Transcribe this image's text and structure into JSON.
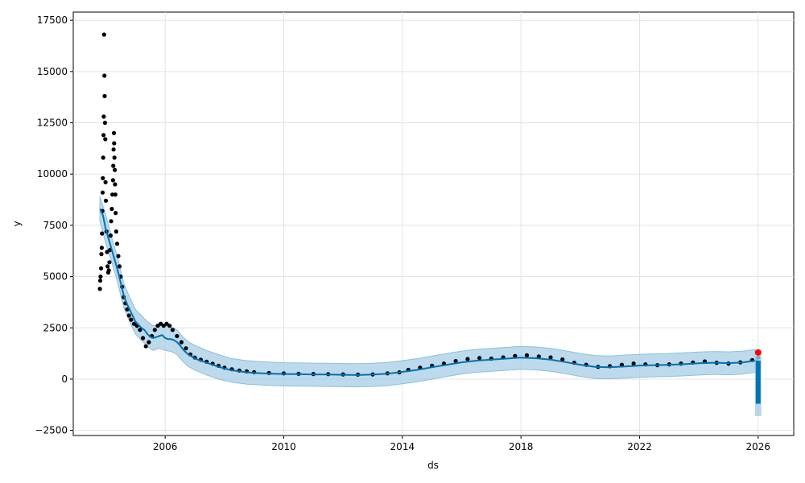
{
  "chart_data": {
    "type": "line",
    "title": "",
    "xlabel": "ds",
    "ylabel": "y",
    "xlim": [
      2002.9,
      2027.2
    ],
    "ylim": [
      -2750,
      17900
    ],
    "xticks": [
      2006,
      2010,
      2014,
      2018,
      2022,
      2026
    ],
    "xtick_labels": [
      "2006",
      "2010",
      "2014",
      "2018",
      "2022",
      "2026"
    ],
    "yticks": [
      -2500,
      0,
      2500,
      5000,
      7500,
      10000,
      12500,
      15000,
      17500
    ],
    "ytick_labels": [
      "−2500",
      "0",
      "2500",
      "5000",
      "7500",
      "10000",
      "12500",
      "15000",
      "17500"
    ],
    "grid": true,
    "colors": {
      "observed": "#000000",
      "forecast": "#0072b2",
      "interval": "#a6cde6",
      "highlight": "#ff0000"
    },
    "observed_points": [
      [
        2003.8,
        4400
      ],
      [
        2003.81,
        4800
      ],
      [
        2003.82,
        5000
      ],
      [
        2003.84,
        5400
      ],
      [
        2003.85,
        6100
      ],
      [
        2003.86,
        6400
      ],
      [
        2003.87,
        7100
      ],
      [
        2003.88,
        8200
      ],
      [
        2003.89,
        9100
      ],
      [
        2003.9,
        9800
      ],
      [
        2003.91,
        10800
      ],
      [
        2003.92,
        11900
      ],
      [
        2003.93,
        12800
      ],
      [
        2003.94,
        16800
      ],
      [
        2003.95,
        14800
      ],
      [
        2003.96,
        13800
      ],
      [
        2003.97,
        12500
      ],
      [
        2003.98,
        11700
      ],
      [
        2003.99,
        9600
      ],
      [
        2004.0,
        8700
      ],
      [
        2004.02,
        7200
      ],
      [
        2004.04,
        6200
      ],
      [
        2004.06,
        5500
      ],
      [
        2004.08,
        5200
      ],
      [
        2004.1,
        5300
      ],
      [
        2004.12,
        5700
      ],
      [
        2004.14,
        6300
      ],
      [
        2004.16,
        7000
      ],
      [
        2004.18,
        7700
      ],
      [
        2004.2,
        8300
      ],
      [
        2004.22,
        9000
      ],
      [
        2004.24,
        9700
      ],
      [
        2004.25,
        10400
      ],
      [
        2004.26,
        11200
      ],
      [
        2004.27,
        12000
      ],
      [
        2004.28,
        11500
      ],
      [
        2004.29,
        10800
      ],
      [
        2004.3,
        10200
      ],
      [
        2004.31,
        9500
      ],
      [
        2004.32,
        9000
      ],
      [
        2004.33,
        8100
      ],
      [
        2004.35,
        7200
      ],
      [
        2004.38,
        6600
      ],
      [
        2004.42,
        6000
      ],
      [
        2004.46,
        5500
      ],
      [
        2004.5,
        5000
      ],
      [
        2004.55,
        4500
      ],
      [
        2004.6,
        4000
      ],
      [
        2004.66,
        3700
      ],
      [
        2004.72,
        3400
      ],
      [
        2004.78,
        3100
      ],
      [
        2004.85,
        2900
      ],
      [
        2004.95,
        2700
      ],
      [
        2005.05,
        2600
      ],
      [
        2005.15,
        2400
      ],
      [
        2005.25,
        2000
      ],
      [
        2005.35,
        1600
      ],
      [
        2005.45,
        1800
      ],
      [
        2005.55,
        2100
      ],
      [
        2005.65,
        2400
      ],
      [
        2005.75,
        2600
      ],
      [
        2005.85,
        2700
      ],
      [
        2005.95,
        2600
      ],
      [
        2006.05,
        2700
      ],
      [
        2006.15,
        2600
      ],
      [
        2006.25,
        2400
      ],
      [
        2006.4,
        2100
      ],
      [
        2006.55,
        1800
      ],
      [
        2006.7,
        1500
      ],
      [
        2006.85,
        1200
      ],
      [
        2007.0,
        1050
      ],
      [
        2007.2,
        950
      ],
      [
        2007.4,
        850
      ],
      [
        2007.6,
        750
      ],
      [
        2007.8,
        650
      ],
      [
        2008.0,
        560
      ],
      [
        2008.25,
        480
      ],
      [
        2008.5,
        420
      ],
      [
        2008.75,
        380
      ],
      [
        2009.0,
        340
      ],
      [
        2009.5,
        300
      ],
      [
        2010.0,
        280
      ],
      [
        2010.5,
        260
      ],
      [
        2011.0,
        250
      ],
      [
        2011.5,
        240
      ],
      [
        2012.0,
        230
      ],
      [
        2012.5,
        220
      ],
      [
        2013.0,
        230
      ],
      [
        2013.5,
        280
      ],
      [
        2013.9,
        330
      ],
      [
        2014.2,
        450
      ],
      [
        2014.6,
        560
      ],
      [
        2015.0,
        650
      ],
      [
        2015.4,
        760
      ],
      [
        2015.8,
        880
      ],
      [
        2016.2,
        980
      ],
      [
        2016.6,
        1030
      ],
      [
        2017.0,
        1000
      ],
      [
        2017.4,
        1060
      ],
      [
        2017.8,
        1130
      ],
      [
        2018.2,
        1160
      ],
      [
        2018.6,
        1100
      ],
      [
        2019.0,
        1060
      ],
      [
        2019.4,
        960
      ],
      [
        2019.8,
        800
      ],
      [
        2020.2,
        700
      ],
      [
        2020.6,
        600
      ],
      [
        2021.0,
        630
      ],
      [
        2021.4,
        700
      ],
      [
        2021.8,
        760
      ],
      [
        2022.2,
        720
      ],
      [
        2022.6,
        680
      ],
      [
        2023.0,
        720
      ],
      [
        2023.4,
        760
      ],
      [
        2023.8,
        810
      ],
      [
        2024.2,
        860
      ],
      [
        2024.6,
        800
      ],
      [
        2025.0,
        760
      ],
      [
        2025.4,
        820
      ],
      [
        2025.8,
        930
      ],
      [
        2026.0,
        1050
      ]
    ],
    "series": [
      {
        "role": "forecast",
        "x": [
          2003.8,
          2003.9,
          2004.0,
          2004.1,
          2004.2,
          2004.3,
          2004.4,
          2004.5,
          2004.6,
          2004.7,
          2004.8,
          2004.9,
          2005.0,
          2005.1,
          2005.2,
          2005.3,
          2005.4,
          2005.5,
          2005.6,
          2005.7,
          2005.8,
          2005.9,
          2006.0,
          2006.1,
          2006.2,
          2006.3,
          2006.4,
          2006.5,
          2006.6,
          2006.7,
          2006.8,
          2006.9,
          2007.0,
          2007.2,
          2007.4,
          2007.6,
          2007.8,
          2008.0,
          2008.25,
          2008.5,
          2008.75,
          2009.0,
          2009.5,
          2010.0,
          2010.5,
          2011.0,
          2011.5,
          2012.0,
          2012.5,
          2013.0,
          2013.5,
          2014.0,
          2014.5,
          2015.0,
          2015.5,
          2016.0,
          2016.5,
          2017.0,
          2017.5,
          2018.0,
          2018.5,
          2019.0,
          2019.5,
          2020.0,
          2020.5,
          2021.0,
          2021.5,
          2022.0,
          2022.5,
          2023.0,
          2023.5,
          2024.0,
          2024.5,
          2025.0,
          2025.5,
          2025.9,
          2026.0
        ],
        "y": [
          8300,
          8000,
          7300,
          6800,
          6300,
          5800,
          5300,
          4700,
          4100,
          3700,
          3400,
          3100,
          2800,
          2650,
          2500,
          2400,
          2200,
          2050,
          2000,
          2050,
          2100,
          2150,
          2000,
          1950,
          1950,
          1900,
          1800,
          1650,
          1450,
          1300,
          1180,
          1100,
          1000,
          900,
          800,
          700,
          600,
          520,
          430,
          380,
          330,
          300,
          270,
          250,
          240,
          230,
          220,
          210,
          200,
          220,
          260,
          350,
          450,
          580,
          700,
          820,
          900,
          950,
          1000,
          1050,
          1020,
          950,
          830,
          700,
          600,
          580,
          620,
          660,
          680,
          700,
          730,
          770,
          800,
          780,
          820,
          900,
          950
        ]
      },
      {
        "role": "interval",
        "x": [
          2003.8,
          2004.0,
          2004.2,
          2004.4,
          2004.6,
          2004.8,
          2005.0,
          2005.2,
          2005.4,
          2005.6,
          2005.8,
          2006.0,
          2006.2,
          2006.4,
          2006.6,
          2006.8,
          2007.0,
          2007.4,
          2007.8,
          2008.25,
          2008.75,
          2009.5,
          2010.0,
          2010.5,
          2011.0,
          2011.5,
          2012.0,
          2012.5,
          2013.0,
          2013.5,
          2014.0,
          2014.5,
          2015.0,
          2015.5,
          2016.0,
          2016.5,
          2017.0,
          2017.5,
          2018.0,
          2018.5,
          2019.0,
          2019.5,
          2020.0,
          2020.5,
          2021.0,
          2021.5,
          2022.0,
          2022.5,
          2023.0,
          2023.5,
          2024.0,
          2024.5,
          2025.0,
          2025.5,
          2025.9
        ],
        "upper": [
          8900,
          8000,
          6900,
          5900,
          4700,
          4000,
          3400,
          3100,
          2800,
          2600,
          2700,
          2600,
          2550,
          2400,
          2050,
          1800,
          1650,
          1400,
          1200,
          1000,
          900,
          830,
          800,
          790,
          780,
          770,
          760,
          750,
          770,
          810,
          900,
          1000,
          1130,
          1250,
          1370,
          1450,
          1500,
          1550,
          1600,
          1570,
          1500,
          1380,
          1250,
          1150,
          1130,
          1170,
          1210,
          1230,
          1250,
          1280,
          1320,
          1350,
          1330,
          1370,
          1450
        ],
        "lower": [
          7700,
          6600,
          5700,
          4700,
          3500,
          2800,
          2200,
          1900,
          1600,
          1400,
          1500,
          1400,
          1350,
          1200,
          850,
          600,
          450,
          200,
          0,
          -150,
          -250,
          -310,
          -330,
          -340,
          -350,
          -360,
          -370,
          -380,
          -360,
          -320,
          -230,
          -130,
          0,
          130,
          250,
          330,
          380,
          430,
          480,
          450,
          380,
          260,
          130,
          30,
          10,
          50,
          90,
          110,
          130,
          160,
          200,
          230,
          210,
          250,
          330
        ]
      },
      {
        "role": "future-forecast",
        "x": [
          2026.0,
          2026.0
        ],
        "y": [
          -1200,
          900
        ],
        "upper": [
          1400,
          1400
        ],
        "lower": [
          -1800,
          -1800
        ]
      }
    ],
    "highlight_point": [
      2026.0,
      1300
    ]
  }
}
